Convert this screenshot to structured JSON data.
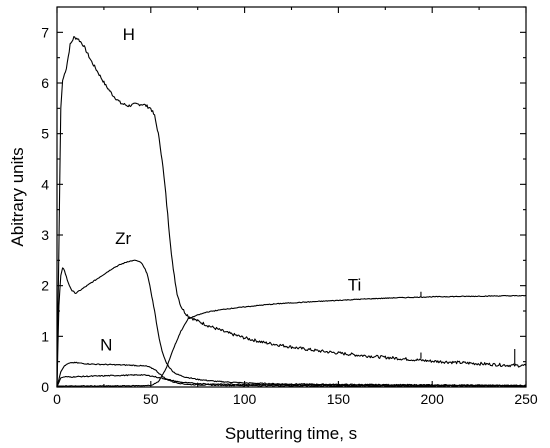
{
  "chart_data": {
    "type": "line",
    "title": "",
    "xlabel": "Sputtering time, s",
    "ylabel": "Abitrary units",
    "xlim": [
      0,
      250
    ],
    "ylim": [
      0,
      7.5
    ],
    "x_ticks": [
      0,
      50,
      100,
      150,
      200,
      250
    ],
    "y_ticks": [
      0,
      1,
      2,
      3,
      4,
      5,
      6,
      7
    ],
    "x_tick_labels": [
      "0",
      "50",
      "100",
      "150",
      "200",
      "250"
    ],
    "y_tick_labels": [
      "0",
      "1",
      "2",
      "3",
      "4",
      "5",
      "6",
      "7"
    ],
    "grid": false,
    "legend": "none",
    "line_color": "#000000",
    "series": [
      {
        "name": "H",
        "label_at": [
          35,
          6.85
        ],
        "x": [
          0,
          2,
          3,
          5,
          7,
          9,
          11,
          14,
          18,
          22,
          26,
          30,
          34,
          38,
          42,
          46,
          50,
          52,
          54,
          56,
          58,
          60,
          62,
          64,
          66,
          68,
          70,
          74,
          80,
          90,
          100,
          110,
          120,
          130,
          140,
          150,
          160,
          170,
          180,
          190,
          200,
          210,
          220,
          230,
          240,
          250
        ],
        "y": [
          0,
          5.5,
          6.05,
          6.3,
          6.75,
          6.9,
          6.88,
          6.75,
          6.45,
          6.2,
          5.95,
          5.75,
          5.6,
          5.55,
          5.58,
          5.58,
          5.5,
          5.35,
          5.0,
          4.5,
          3.8,
          3.0,
          2.3,
          1.85,
          1.6,
          1.48,
          1.4,
          1.32,
          1.22,
          1.08,
          0.97,
          0.88,
          0.82,
          0.76,
          0.71,
          0.67,
          0.63,
          0.6,
          0.57,
          0.54,
          0.51,
          0.49,
          0.47,
          0.45,
          0.43,
          0.42
        ]
      },
      {
        "name": "Zr",
        "label_at": [
          31,
          2.82
        ],
        "x": [
          0,
          1,
          2,
          3,
          4,
          6,
          8,
          10,
          14,
          18,
          22,
          26,
          30,
          34,
          38,
          42,
          45,
          48,
          50,
          52,
          54,
          56,
          58,
          60,
          62,
          64,
          68,
          75,
          85,
          100,
          120,
          150,
          200,
          250
        ],
        "y": [
          0,
          1.6,
          2.2,
          2.35,
          2.3,
          2.05,
          1.9,
          1.85,
          1.95,
          2.05,
          2.15,
          2.25,
          2.35,
          2.42,
          2.48,
          2.5,
          2.45,
          2.25,
          1.9,
          1.5,
          1.05,
          0.7,
          0.5,
          0.38,
          0.3,
          0.25,
          0.2,
          0.15,
          0.11,
          0.08,
          0.06,
          0.05,
          0.04,
          0.03
        ]
      },
      {
        "name": "N",
        "label_at": [
          23,
          0.72
        ],
        "x": [
          0,
          2,
          4,
          6,
          8,
          10,
          15,
          20,
          30,
          40,
          48,
          52,
          55,
          58,
          62,
          66,
          70,
          80,
          100,
          150,
          200,
          250
        ],
        "y": [
          0,
          0.3,
          0.42,
          0.46,
          0.48,
          0.48,
          0.46,
          0.45,
          0.44,
          0.43,
          0.41,
          0.35,
          0.25,
          0.16,
          0.1,
          0.07,
          0.05,
          0.04,
          0.03,
          0.02,
          0.02,
          0.02
        ]
      },
      {
        "name": "",
        "x": [
          0,
          2,
          4,
          8,
          15,
          25,
          35,
          45,
          50,
          55,
          60,
          65,
          70,
          80,
          100,
          150,
          200,
          250
        ],
        "y": [
          0,
          0.18,
          0.2,
          0.2,
          0.21,
          0.22,
          0.23,
          0.24,
          0.22,
          0.18,
          0.14,
          0.1,
          0.08,
          0.06,
          0.05,
          0.04,
          0.03,
          0.03
        ]
      },
      {
        "name": "Ti",
        "label_at": [
          155,
          1.9
        ],
        "x": [
          0,
          30,
          50,
          54,
          58,
          62,
          66,
          70,
          75,
          80,
          90,
          100,
          110,
          120,
          140,
          160,
          180,
          200,
          220,
          240,
          250
        ],
        "y": [
          0.02,
          0.02,
          0.03,
          0.1,
          0.35,
          0.75,
          1.1,
          1.35,
          1.42,
          1.48,
          1.54,
          1.58,
          1.62,
          1.65,
          1.69,
          1.73,
          1.76,
          1.78,
          1.79,
          1.8,
          1.8
        ]
      }
    ],
    "spikes": [
      {
        "x": 244,
        "y0": 0.45,
        "y1": 0.75
      },
      {
        "x": 194,
        "y0": 0.56,
        "y1": 0.68
      },
      {
        "x": 194,
        "y0": 1.78,
        "y1": 1.88
      }
    ]
  }
}
